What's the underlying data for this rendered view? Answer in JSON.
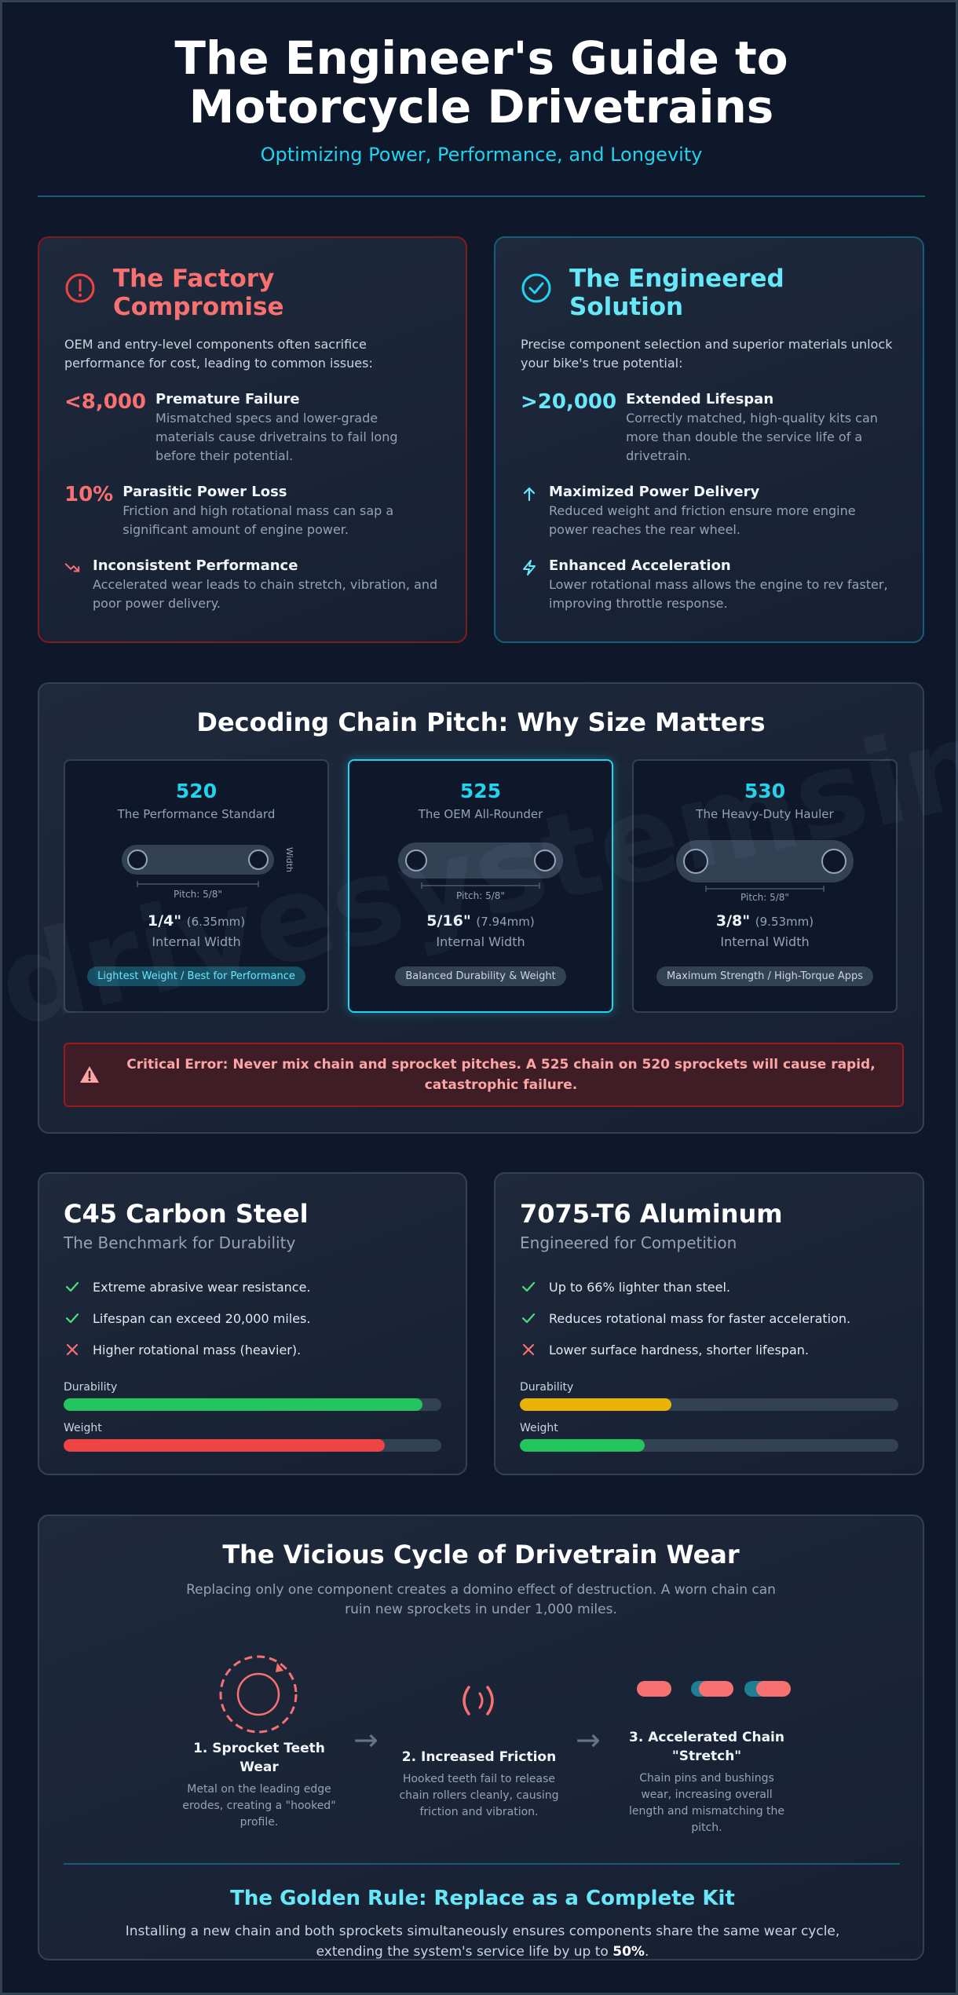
{
  "header": {
    "title_line1": "The Engineer's Guide to",
    "title_line2": "Motorcycle Drivetrains",
    "subtitle": "Optimizing Power, Performance, and Longevity"
  },
  "watermark": "drivesystemsinc.co",
  "factory": {
    "title_line1": "The Factory",
    "title_line2": "Compromise",
    "intro": "OEM and entry-level components often sacrifice performance for cost, leading to common issues:",
    "items": [
      {
        "stat": "<8,000",
        "heading": "Premature Failure",
        "desc": "Mismatched specs and lower-grade materials cause drivetrains to fail long before their potential."
      },
      {
        "stat": "10%",
        "heading": "Parasitic Power Loss",
        "desc": "Friction and high rotational mass can sap a significant amount of engine power."
      },
      {
        "icon": "trend-down-icon",
        "heading": "Inconsistent Performance",
        "desc": "Accelerated wear leads to chain stretch, vibration, and poor power delivery."
      }
    ]
  },
  "engineered": {
    "title_line1": "The Engineered",
    "title_line2": "Solution",
    "intro": "Precise component selection and superior materials unlock your bike's true potential:",
    "items": [
      {
        "stat": ">20,000",
        "heading": "Extended Lifespan",
        "desc": "Correctly matched, high-quality kits can more than double the service life of a drivetrain."
      },
      {
        "icon": "arrow-up-icon",
        "heading": "Maximized Power Delivery",
        "desc": "Reduced weight and friction ensure more engine power reaches the rear wheel."
      },
      {
        "icon": "lightning-icon",
        "heading": "Enhanced Acceleration",
        "desc": "Lower rotational mass allows the engine to rev faster, improving throttle response."
      }
    ]
  },
  "pitch": {
    "title": "Decoding Chain Pitch: Why Size Matters",
    "cards": [
      {
        "size": "520",
        "subtitle": "The Performance Standard",
        "pitch_label": "Pitch: 5/8\"",
        "width_label": "Width",
        "width": "1/4\"",
        "mm": "(6.35mm)",
        "iw": "Internal Width",
        "tag": "Lightest Weight / Best for Performance"
      },
      {
        "size": "525",
        "subtitle": "The OEM All-Rounder",
        "pitch_label": "Pitch: 5/8\"",
        "width": "5/16\"",
        "mm": "(7.94mm)",
        "iw": "Internal Width",
        "tag": "Balanced Durability & Weight"
      },
      {
        "size": "530",
        "subtitle": "The Heavy-Duty Hauler",
        "pitch_label": "Pitch: 5/8\"",
        "width": "3/8\"",
        "mm": "(9.53mm)",
        "iw": "Internal Width",
        "tag": "Maximum Strength / High-Torque Apps"
      }
    ],
    "alert": "Critical Error: Never mix chain and sprocket pitches. A 525 chain on 520 sprockets will cause rapid, catastrophic failure."
  },
  "materials": [
    {
      "title": "C45 Carbon Steel",
      "subtitle": "The Benchmark for Durability",
      "items": [
        {
          "type": "pro",
          "text": "Extreme abrasive wear resistance."
        },
        {
          "type": "pro",
          "text": "Lifespan can exceed 20,000 miles."
        },
        {
          "type": "con",
          "text": "Higher rotational mass (heavier)."
        }
      ],
      "bars": [
        {
          "label": "Durability",
          "value": 95,
          "color": "#22c55e"
        },
        {
          "label": "Weight",
          "value": 85,
          "color": "#ef4444"
        }
      ]
    },
    {
      "title": "7075-T6 Aluminum",
      "subtitle": "Engineered for Competition",
      "items": [
        {
          "type": "pro",
          "text": "Up to 66% lighter than steel."
        },
        {
          "type": "pro",
          "text": "Reduces rotational mass for faster acceleration."
        },
        {
          "type": "con",
          "text": "Lower surface hardness, shorter lifespan."
        }
      ],
      "bars": [
        {
          "label": "Durability",
          "value": 40,
          "color": "#eab308"
        },
        {
          "label": "Weight",
          "value": 33,
          "color": "#22c55e"
        }
      ]
    }
  ],
  "cycle": {
    "title": "The Vicious Cycle of Drivetrain Wear",
    "subtitle": "Replacing only one component creates a domino effect of destruction. A worn chain can ruin new sprockets in under 1,000 miles.",
    "steps": [
      {
        "heading": "1. Sprocket Teeth Wear",
        "desc": "Metal on the leading edge erodes, creating a \"hooked\" profile."
      },
      {
        "heading": "2. Increased Friction",
        "desc": "Hooked teeth fail to release chain rollers cleanly, causing friction and vibration."
      },
      {
        "heading": "3. Accelerated Chain \"Stretch\"",
        "desc": "Chain pins and bushings wear, increasing overall length and mismatching the pitch."
      }
    ],
    "arrow": "→",
    "golden_title": "The Golden Rule: Replace as a Complete Kit",
    "golden_text": "Installing a new chain and both sprockets simultaneously ensures components share the same wear cycle, extending the system's service life by up to",
    "golden_highlight": "50%",
    "golden_end": "."
  },
  "colors": {
    "red": "#f87171",
    "cyan": "#22d3ee",
    "cyan_light": "#67e8f9",
    "bg": "#0f172a",
    "card": "#1e293b"
  }
}
